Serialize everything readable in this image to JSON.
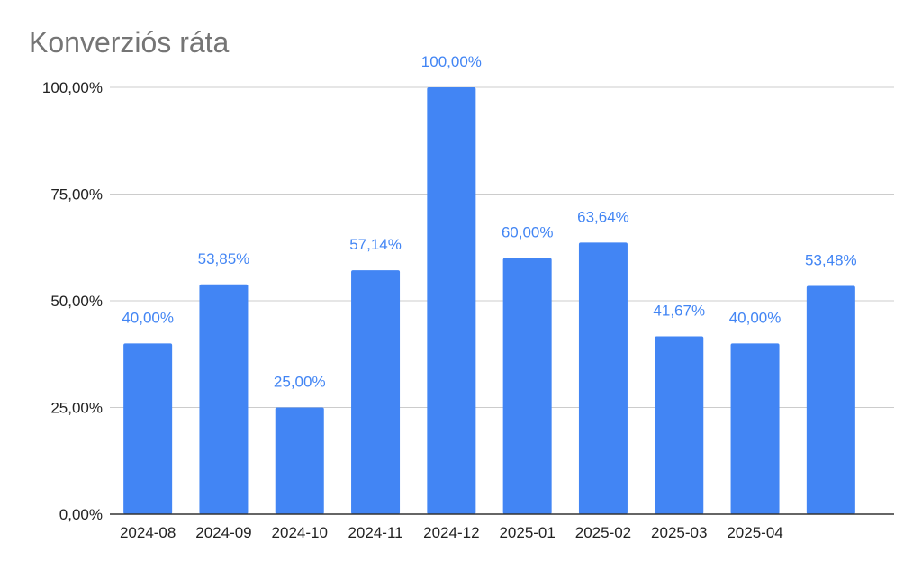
{
  "chart_data": {
    "type": "bar",
    "title": "Konverziós ráta",
    "xlabel": "",
    "ylabel": "",
    "ylim": [
      0,
      100
    ],
    "y_ticks": [
      {
        "value": 0,
        "label": "0,00%"
      },
      {
        "value": 25,
        "label": "25,00%"
      },
      {
        "value": 50,
        "label": "50,00%"
      },
      {
        "value": 75,
        "label": "75,00%"
      },
      {
        "value": 100,
        "label": "100,00%"
      }
    ],
    "categories": [
      "2024-08",
      "2024-09",
      "2024-10",
      "2024-11",
      "2024-12",
      "2025-01",
      "2025-02",
      "2025-03",
      "2025-04",
      ""
    ],
    "values": [
      40.0,
      53.85,
      25.0,
      57.14,
      100.0,
      60.0,
      63.64,
      41.67,
      40.0,
      53.48
    ],
    "data_labels": [
      "40,00%",
      "53,85%",
      "25,00%",
      "57,14%",
      "100,00%",
      "60,00%",
      "63,64%",
      "41,67%",
      "40,00%",
      "53,48%"
    ],
    "grid": true,
    "legend": "none",
    "colors": {
      "bar": "#4285f4",
      "data_label": "#4285f4",
      "gridline": "#cccccc",
      "axis": "#333333",
      "title": "#757575",
      "tick_text": "#222222"
    }
  }
}
